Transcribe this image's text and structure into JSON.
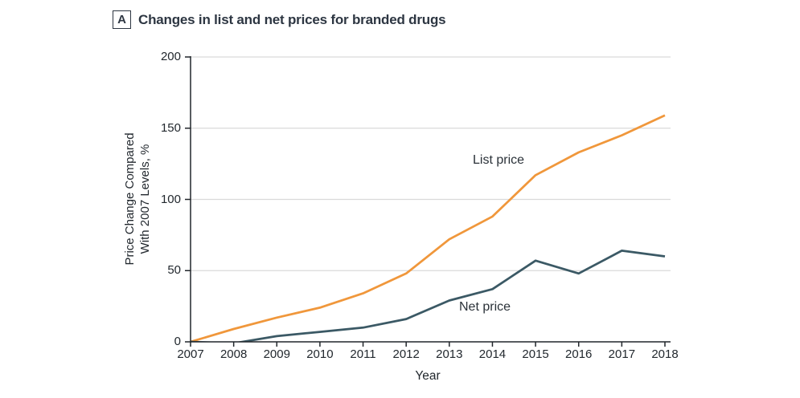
{
  "panel": {
    "letter": "A",
    "title": "Changes in list and net prices for branded drugs"
  },
  "axes": {
    "xlabel": "Year",
    "ylabel_line1": "Price Change Compared",
    "ylabel_line2": "With 2007 Levels, %"
  },
  "colors": {
    "list_price": "#F0973B",
    "net_price": "#3B5965",
    "grid": "#DADADA",
    "axis": "#21262B",
    "text": "#2A3138"
  },
  "chart_data": {
    "type": "line",
    "title": "Changes in list and net prices for branded drugs",
    "x": [
      2007,
      2008,
      2009,
      2010,
      2011,
      2012,
      2013,
      2014,
      2015,
      2016,
      2017,
      2018
    ],
    "series": [
      {
        "name": "List price",
        "color": "#F0973B",
        "values": [
          0,
          9,
          17,
          24,
          34,
          48,
          72,
          88,
          117,
          133,
          145,
          159
        ]
      },
      {
        "name": "Net price",
        "color": "#3B5965",
        "values": [
          0,
          -1,
          4,
          7,
          10,
          16,
          29,
          37,
          57,
          48,
          64,
          60
        ]
      }
    ],
    "xlabel": "Year",
    "ylabel": "Price Change Compared With 2007 Levels, %",
    "ylim": [
      0,
      200
    ],
    "yticks": [
      0,
      50,
      100,
      150,
      200
    ],
    "grid": "horizontal-gridlines",
    "legend": "inline-series-labels"
  }
}
